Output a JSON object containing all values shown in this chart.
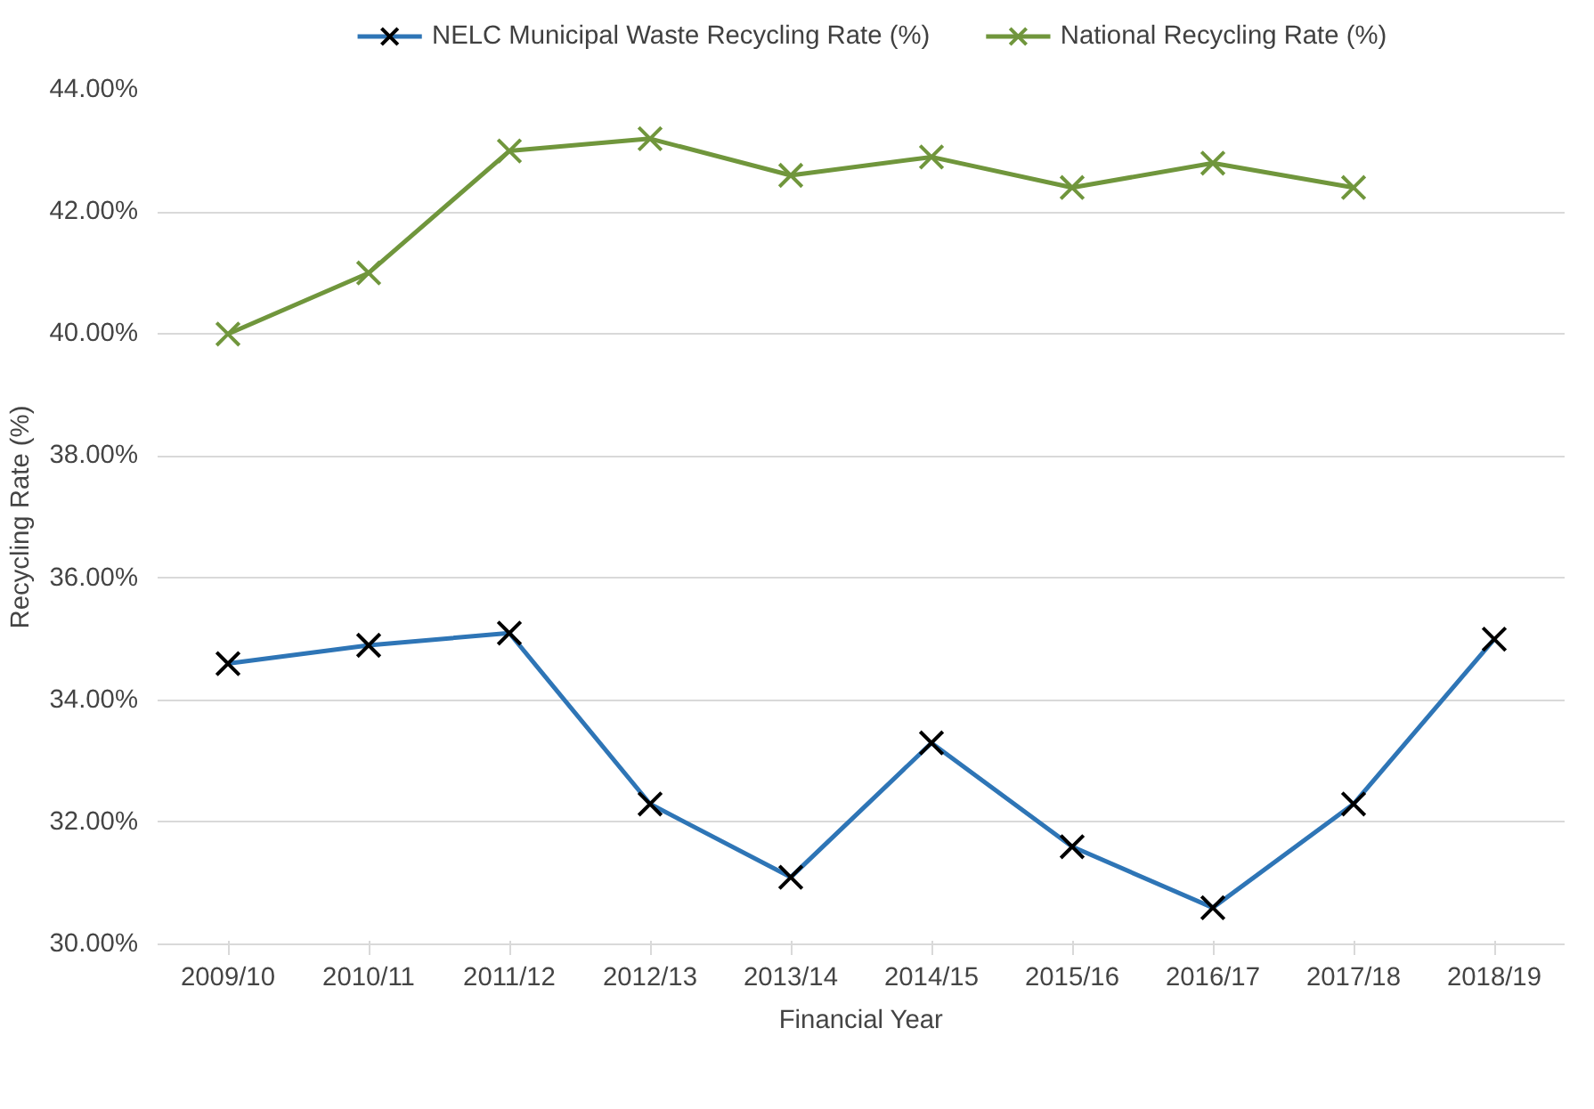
{
  "chart_data": {
    "type": "line",
    "xlabel": "Financial Year",
    "ylabel": "Recycling Rate (%)",
    "categories": [
      "2009/10",
      "2010/11",
      "2011/12",
      "2012/13",
      "2013/14",
      "2014/15",
      "2015/16",
      "2016/17",
      "2017/18",
      "2018/19"
    ],
    "series": [
      {
        "name": "NELC Municipal Waste Recycling Rate (%)",
        "color": "#2e75b6",
        "colors": [
          "#000000",
          "#000000",
          "#000000",
          "#000000",
          "#000000",
          "#000000",
          "#000000",
          "#000000",
          "#000000",
          "#000000"
        ],
        "values": [
          34.6,
          34.9,
          35.1,
          32.3,
          31.1,
          33.3,
          31.6,
          30.6,
          32.3,
          35.0
        ]
      },
      {
        "name": "National Recycling Rate (%)",
        "color": "#70963c",
        "values": [
          40.0,
          41.0,
          43.0,
          43.2,
          42.6,
          42.9,
          42.4,
          42.8,
          42.4,
          null
        ]
      }
    ],
    "ylim": [
      30,
      44
    ],
    "yticks": [
      {
        "value": 30,
        "label": "30.00%"
      },
      {
        "value": 32,
        "label": "32.00%"
      },
      {
        "value": 34,
        "label": "34.00%"
      },
      {
        "value": 36,
        "label": "36.00%"
      },
      {
        "value": 38,
        "label": "38.00%"
      },
      {
        "value": 40,
        "label": "40.00%"
      },
      {
        "value": 42,
        "label": "42.00%"
      },
      {
        "value": 44,
        "label": "44.00%"
      }
    ],
    "grid": "y",
    "legend": "top",
    "marker": "cross",
    "line_style": "solid"
  }
}
